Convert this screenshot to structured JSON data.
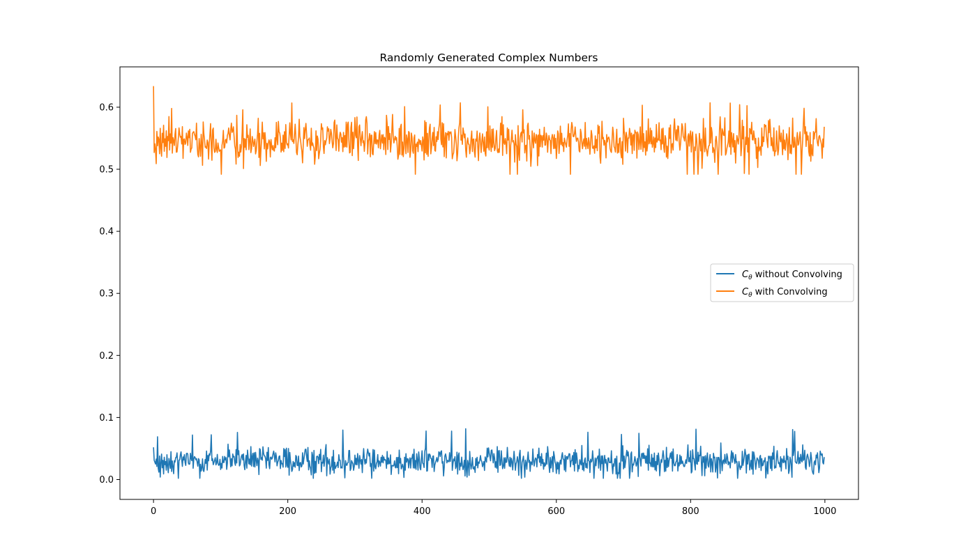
{
  "chart_data": {
    "type": "line",
    "title": "Randomly Generated Complex Numbers",
    "xlabel": "",
    "ylabel": "",
    "xlim": [
      -50,
      1050
    ],
    "ylim": [
      -0.032,
      0.665
    ],
    "xticks": [
      0,
      200,
      400,
      600,
      800,
      1000
    ],
    "yticks": [
      0.0,
      0.1,
      0.2,
      0.3,
      0.4,
      0.5,
      0.6
    ],
    "xtick_labels": [
      "0",
      "200",
      "400",
      "600",
      "800",
      "1000"
    ],
    "ytick_labels": [
      "0.0",
      "0.1",
      "0.2",
      "0.3",
      "0.4",
      "0.5",
      "0.6"
    ],
    "grid": false,
    "legend": {
      "placement": "center-right"
    },
    "n_points": 1000,
    "series": [
      {
        "name": "without Convolving",
        "legend_symbol": "C",
        "legend_subscript": "θ",
        "color": "#1f77b4",
        "mean": 0.03,
        "spread_min": 0.002,
        "spread_max": 0.082,
        "values": [
          0.052,
          0.031,
          0.028,
          0.025,
          0.033,
          0.021,
          0.069,
          0.018,
          0.012,
          0.038,
          0.004,
          0.027,
          0.041,
          0.019,
          0.031,
          0.009,
          0.036,
          0.024,
          0.029,
          0.015,
          0.04,
          0.022,
          0.011,
          0.034,
          0.027,
          0.018,
          0.045,
          0.013,
          0.03,
          0.021
        ]
      },
      {
        "name": "with Convolving",
        "legend_symbol": "C",
        "legend_subscript": "θ",
        "color": "#ff7f0e",
        "mean": 0.545,
        "spread_min": 0.492,
        "spread_max": 0.608,
        "values": [
          0.634,
          0.527,
          0.541,
          0.532,
          0.509,
          0.561,
          0.538,
          0.552,
          0.548,
          0.525,
          0.566,
          0.534,
          0.521,
          0.558,
          0.543,
          0.571,
          0.529,
          0.549,
          0.537,
          0.562,
          0.519,
          0.553,
          0.546,
          0.585,
          0.531,
          0.557,
          0.542,
          0.598,
          0.526,
          0.551
        ]
      }
    ]
  }
}
